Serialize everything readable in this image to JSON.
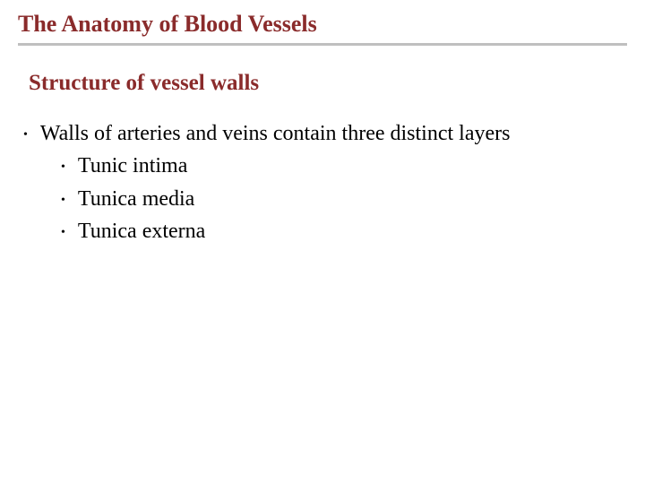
{
  "colors": {
    "title": "#8a2b2b",
    "subtitle": "#8a2b2b",
    "body": "#000000",
    "rule": "#bfbfbf",
    "background": "#ffffff"
  },
  "fonts": {
    "title_size": 26,
    "subtitle_size": 25,
    "body_size": 24
  },
  "title": "The Anatomy of Blood Vessels",
  "subtitle": "Structure of vessel walls",
  "bullets": [
    {
      "text": "Walls of arteries and veins contain three distinct layers",
      "children": [
        {
          "text": "Tunic intima"
        },
        {
          "text": "Tunica media"
        },
        {
          "text": "Tunica externa"
        }
      ]
    }
  ]
}
